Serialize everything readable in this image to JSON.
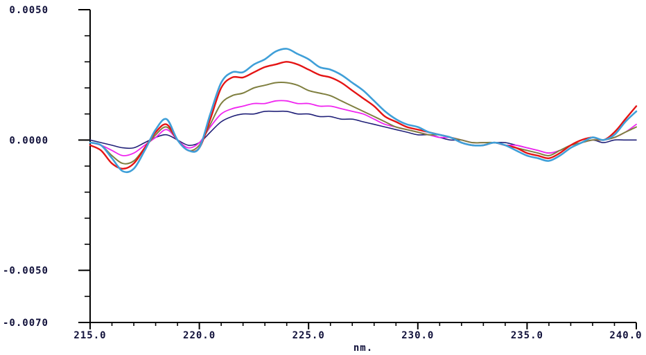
{
  "page": {
    "background": "#ffffff"
  },
  "chart_data": {
    "type": "line",
    "title": "",
    "xlabel": "nm.",
    "ylabel": "",
    "xlim": [
      215.0,
      240.0
    ],
    "ylim": [
      -0.007,
      0.005
    ],
    "grid": false,
    "legend": "none",
    "axis_color": "#000000",
    "tick_label_color": "#10103a",
    "x_major_ticks": [
      {
        "value": 215.0,
        "label": "215.0"
      },
      {
        "value": 220.0,
        "label": "220.0"
      },
      {
        "value": 225.0,
        "label": "225.0"
      },
      {
        "value": 230.0,
        "label": "230.0"
      },
      {
        "value": 235.0,
        "label": "235.0"
      },
      {
        "value": 240.0,
        "label": "240.0"
      }
    ],
    "x_minor_tick_step": 1.0,
    "y_major_ticks": [
      {
        "value": 0.005,
        "label": "0.0050"
      },
      {
        "value": 0.0,
        "label": "0.0000"
      },
      {
        "value": -0.005,
        "label": "-0.0050"
      },
      {
        "value": -0.007,
        "label": "-0.0070"
      }
    ],
    "y_minor_tick_step": 0.001,
    "x": [
      215,
      215.5,
      216,
      216.5,
      217,
      217.5,
      218,
      218.5,
      219,
      219.5,
      220,
      220.5,
      221,
      221.5,
      222,
      222.5,
      223,
      223.5,
      224,
      224.5,
      225,
      225.5,
      226,
      226.5,
      227,
      227.5,
      228,
      228.5,
      229,
      229.5,
      230,
      230.5,
      231,
      231.5,
      232,
      232.5,
      233,
      233.5,
      234,
      234.5,
      235,
      235.5,
      236,
      236.5,
      237,
      237.5,
      238,
      238.5,
      239,
      239.5,
      240
    ],
    "series": [
      {
        "name": "light-blue-trace",
        "color": "#3f9fd8",
        "stroke_width": 2.6,
        "values": [
          -0.0001,
          -0.0002,
          -0.0007,
          -0.0012,
          -0.0011,
          -0.0004,
          0.0004,
          0.0008,
          0.0,
          -0.0004,
          -0.0003,
          0.001,
          0.0022,
          0.0026,
          0.0026,
          0.0029,
          0.0031,
          0.0034,
          0.0035,
          0.0033,
          0.0031,
          0.0028,
          0.0027,
          0.0025,
          0.0022,
          0.0019,
          0.0015,
          0.0011,
          0.0008,
          0.0006,
          0.0005,
          0.0003,
          0.0002,
          0.0001,
          -0.0001,
          -0.0002,
          -0.0002,
          -0.0001,
          -0.0002,
          -0.0004,
          -0.0006,
          -0.0007,
          -0.0008,
          -0.0006,
          -0.0003,
          -0.0001,
          0.0001,
          0.0,
          0.0002,
          0.0007,
          0.0011
        ]
      },
      {
        "name": "red-trace",
        "color": "#e41414",
        "stroke_width": 2.4,
        "values": [
          -0.0002,
          -0.0004,
          -0.0009,
          -0.0011,
          -0.0009,
          -0.0003,
          0.0003,
          0.0006,
          0.0,
          -0.0004,
          -0.0003,
          0.0008,
          0.002,
          0.0024,
          0.0024,
          0.0026,
          0.0028,
          0.0029,
          0.003,
          0.0029,
          0.0027,
          0.0025,
          0.0024,
          0.0022,
          0.0019,
          0.0016,
          0.0013,
          0.0009,
          0.0007,
          0.0005,
          0.0004,
          0.0003,
          0.0002,
          0.0001,
          -0.0001,
          -0.0002,
          -0.0002,
          -0.0001,
          -0.0002,
          -0.0003,
          -0.0005,
          -0.0006,
          -0.0007,
          -0.0005,
          -0.0002,
          0.0,
          0.0001,
          0.0,
          0.0003,
          0.0008,
          0.0013
        ]
      },
      {
        "name": "olive-trace",
        "color": "#7f7f3f",
        "stroke_width": 2.0,
        "values": [
          -0.0001,
          -0.0002,
          -0.0006,
          -0.0009,
          -0.0008,
          -0.0003,
          0.0002,
          0.0005,
          0.0,
          -0.0004,
          -0.0002,
          0.0006,
          0.0014,
          0.0017,
          0.0018,
          0.002,
          0.0021,
          0.0022,
          0.0022,
          0.0021,
          0.0019,
          0.0018,
          0.0017,
          0.0015,
          0.0013,
          0.0011,
          0.0009,
          0.0007,
          0.0005,
          0.0004,
          0.0003,
          0.0002,
          0.0002,
          0.0001,
          0.0,
          -0.0001,
          -0.0001,
          -0.0001,
          -0.0002,
          -0.0003,
          -0.0004,
          -0.0005,
          -0.0006,
          -0.0004,
          -0.0002,
          -0.0001,
          0.0,
          0.0,
          0.0001,
          0.0003,
          0.0005
        ]
      },
      {
        "name": "magenta-trace",
        "color": "#f024f0",
        "stroke_width": 1.8,
        "values": [
          -0.0001,
          -0.0002,
          -0.0004,
          -0.0006,
          -0.0005,
          -0.0002,
          0.0001,
          0.0004,
          0.0,
          -0.0003,
          -0.0001,
          0.0005,
          0.001,
          0.0012,
          0.0013,
          0.0014,
          0.0014,
          0.0015,
          0.0015,
          0.0014,
          0.0014,
          0.0013,
          0.0013,
          0.0012,
          0.0011,
          0.001,
          0.0008,
          0.0006,
          0.0005,
          0.0004,
          0.0003,
          0.0002,
          0.0001,
          0.0001,
          0.0,
          -0.0001,
          -0.0001,
          -0.0001,
          -0.0002,
          -0.0002,
          -0.0003,
          -0.0004,
          -0.0005,
          -0.0004,
          -0.0002,
          -0.0001,
          0.0,
          0.0,
          0.0001,
          0.0003,
          0.0006
        ]
      },
      {
        "name": "navy-trace",
        "color": "#202078",
        "stroke_width": 1.6,
        "values": [
          0.0,
          -0.0001,
          -0.0002,
          -0.0003,
          -0.0003,
          -0.0001,
          0.0001,
          0.0002,
          0.0,
          -0.0002,
          -0.0001,
          0.0003,
          0.0007,
          0.0009,
          0.001,
          0.001,
          0.0011,
          0.0011,
          0.0011,
          0.001,
          0.001,
          0.0009,
          0.0009,
          0.0008,
          0.0008,
          0.0007,
          0.0006,
          0.0005,
          0.0004,
          0.0003,
          0.0002,
          0.0002,
          0.0001,
          0.0,
          0.0,
          -0.0001,
          -0.0001,
          -0.0001,
          -0.0001,
          -0.0002,
          -0.0003,
          -0.0004,
          -0.0005,
          -0.0004,
          -0.0002,
          -0.0001,
          0.0,
          -0.0001,
          0.0,
          0.0,
          0.0
        ]
      }
    ]
  }
}
